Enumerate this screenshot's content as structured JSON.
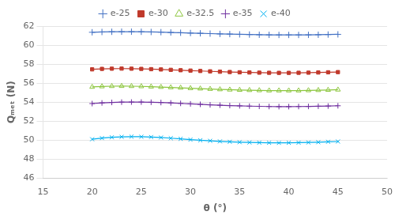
{
  "chart_data": {
    "type": "line",
    "xlabel": "θ (°)",
    "ylabel": "Qₘₑₜ (N)",
    "xlim": [
      15,
      50
    ],
    "ylim": [
      46,
      62
    ],
    "xticks": [
      15,
      20,
      25,
      30,
      35,
      40,
      45,
      50
    ],
    "yticks": [
      46,
      48,
      50,
      52,
      54,
      56,
      58,
      60,
      62
    ],
    "grid": "y",
    "legend": "top",
    "x": [
      20,
      21,
      22,
      23,
      24,
      25,
      26,
      27,
      28,
      29,
      30,
      31,
      32,
      33,
      34,
      35,
      36,
      37,
      38,
      39,
      40,
      41,
      42,
      43,
      44,
      45
    ],
    "series": [
      {
        "name": "e-25",
        "color": "#4472c4",
        "marker": "plus",
        "values": [
          61.35,
          61.38,
          61.4,
          61.41,
          61.41,
          61.4,
          61.38,
          61.36,
          61.33,
          61.3,
          61.27,
          61.24,
          61.21,
          61.18,
          61.16,
          61.13,
          61.11,
          61.09,
          61.08,
          61.07,
          61.07,
          61.07,
          61.08,
          61.09,
          61.11,
          61.13
        ]
      },
      {
        "name": "e-30",
        "color": "#c0392b",
        "marker": "square",
        "values": [
          57.45,
          57.5,
          57.52,
          57.53,
          57.52,
          57.5,
          57.47,
          57.44,
          57.4,
          57.36,
          57.32,
          57.28,
          57.24,
          57.2,
          57.17,
          57.14,
          57.12,
          57.1,
          57.09,
          57.08,
          57.08,
          57.09,
          57.1,
          57.12,
          57.14,
          57.16
        ]
      },
      {
        "name": "e-32.5",
        "color": "#8dc63f",
        "marker": "triangle",
        "values": [
          55.6,
          55.65,
          55.68,
          55.69,
          55.68,
          55.66,
          55.63,
          55.59,
          55.55,
          55.51,
          55.46,
          55.42,
          55.38,
          55.34,
          55.31,
          55.28,
          55.26,
          55.24,
          55.22,
          55.22,
          55.22,
          55.22,
          55.24,
          55.26,
          55.28,
          55.31
        ]
      },
      {
        "name": "e-35",
        "color": "#7030a0",
        "marker": "plus_filled",
        "values": [
          53.85,
          53.92,
          53.97,
          54.0,
          54.01,
          54.01,
          53.99,
          53.96,
          53.92,
          53.87,
          53.82,
          53.77,
          53.72,
          53.68,
          53.64,
          53.61,
          53.58,
          53.56,
          53.54,
          53.53,
          53.53,
          53.54,
          53.55,
          53.57,
          53.59,
          53.62
        ]
      },
      {
        "name": "e-40",
        "color": "#00b0f0",
        "marker": "x",
        "values": [
          50.1,
          50.22,
          50.3,
          50.35,
          50.37,
          50.36,
          50.33,
          50.28,
          50.21,
          50.14,
          50.06,
          49.99,
          49.93,
          49.87,
          49.83,
          49.79,
          49.76,
          49.74,
          49.73,
          49.72,
          49.73,
          49.74,
          49.76,
          49.79,
          49.83,
          49.86
        ]
      }
    ]
  }
}
